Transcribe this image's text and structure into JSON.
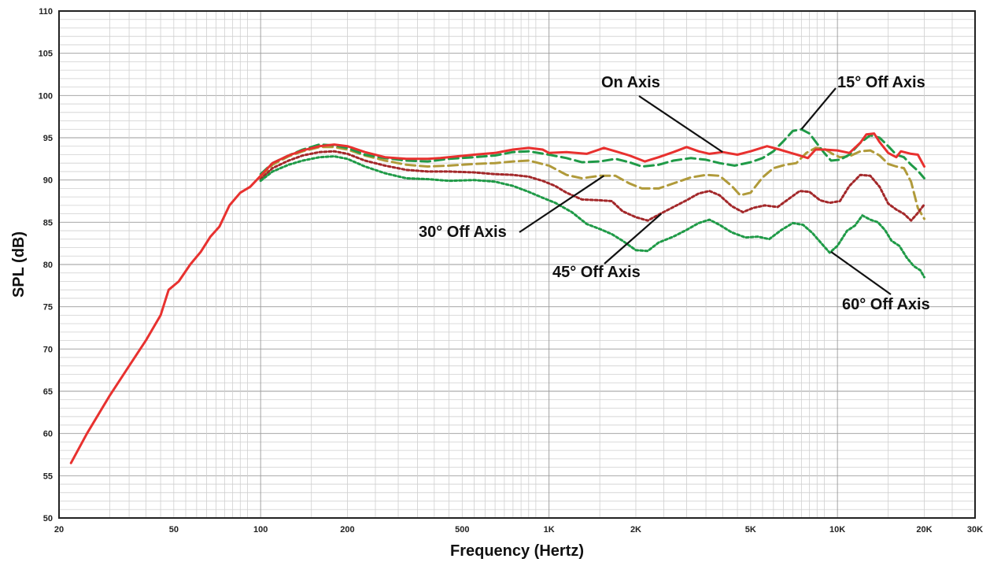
{
  "chart_data": {
    "type": "line",
    "title": "",
    "xlabel": "Frequency (Hertz)",
    "ylabel": "SPL (dB)",
    "x_scale": "log",
    "xlim": [
      20,
      30000
    ],
    "ylim": [
      50,
      110
    ],
    "grid": true,
    "x_ticks": [
      {
        "value": 20,
        "label": "20"
      },
      {
        "value": 50,
        "label": "50"
      },
      {
        "value": 100,
        "label": "100"
      },
      {
        "value": 200,
        "label": "200"
      },
      {
        "value": 500,
        "label": "500"
      },
      {
        "value": 1000,
        "label": "1K"
      },
      {
        "value": 2000,
        "label": "2K"
      },
      {
        "value": 5000,
        "label": "5K"
      },
      {
        "value": 10000,
        "label": "10K"
      },
      {
        "value": 20000,
        "label": "20K"
      },
      {
        "value": 30000,
        "label": "30K"
      }
    ],
    "y_ticks": [
      {
        "value": 50,
        "label": "50"
      },
      {
        "value": 55,
        "label": "55"
      },
      {
        "value": 60,
        "label": "60"
      },
      {
        "value": 65,
        "label": "65"
      },
      {
        "value": 70,
        "label": "70"
      },
      {
        "value": 75,
        "label": "75"
      },
      {
        "value": 80,
        "label": "80"
      },
      {
        "value": 85,
        "label": "85"
      },
      {
        "value": 90,
        "label": "90"
      },
      {
        "value": 95,
        "label": "95"
      },
      {
        "value": 100,
        "label": "100"
      },
      {
        "value": 105,
        "label": "105"
      },
      {
        "value": 110,
        "label": "110"
      }
    ],
    "series": [
      {
        "name": "On Axis",
        "color": "#e8312f",
        "style": "solid",
        "points": [
          [
            22,
            56.5
          ],
          [
            25,
            60
          ],
          [
            30,
            64.5
          ],
          [
            35,
            68
          ],
          [
            40,
            71
          ],
          [
            45,
            74
          ],
          [
            48,
            77
          ],
          [
            52,
            78
          ],
          [
            57,
            80
          ],
          [
            62,
            81.5
          ],
          [
            67,
            83.3
          ],
          [
            72,
            84.5
          ],
          [
            78,
            87
          ],
          [
            85,
            88.5
          ],
          [
            92,
            89.2
          ],
          [
            100,
            90.5
          ],
          [
            110,
            92
          ],
          [
            125,
            92.9
          ],
          [
            140,
            93.5
          ],
          [
            160,
            94
          ],
          [
            180,
            94.2
          ],
          [
            200,
            94
          ],
          [
            230,
            93.3
          ],
          [
            270,
            92.7
          ],
          [
            320,
            92.5
          ],
          [
            380,
            92.5
          ],
          [
            420,
            92.6
          ],
          [
            480,
            92.8
          ],
          [
            550,
            93
          ],
          [
            650,
            93.2
          ],
          [
            750,
            93.6
          ],
          [
            850,
            93.8
          ],
          [
            950,
            93.6
          ],
          [
            1000,
            93.2
          ],
          [
            1150,
            93.3
          ],
          [
            1350,
            93.1
          ],
          [
            1550,
            93.8
          ],
          [
            1700,
            93.4
          ],
          [
            1900,
            92.9
          ],
          [
            2150,
            92.2
          ],
          [
            2400,
            92.7
          ],
          [
            2700,
            93.3
          ],
          [
            3000,
            93.9
          ],
          [
            3300,
            93.4
          ],
          [
            3600,
            93.1
          ],
          [
            4000,
            93.3
          ],
          [
            4500,
            93
          ],
          [
            5000,
            93.4
          ],
          [
            5700,
            94
          ],
          [
            6300,
            93.6
          ],
          [
            6900,
            93.2
          ],
          [
            7400,
            92.9
          ],
          [
            7900,
            92.6
          ],
          [
            8400,
            93.6
          ],
          [
            9000,
            93.6
          ],
          [
            10000,
            93.5
          ],
          [
            11000,
            93.2
          ],
          [
            12000,
            94.4
          ],
          [
            12600,
            95.4
          ],
          [
            13400,
            95.5
          ],
          [
            14000,
            94.5
          ],
          [
            15000,
            93.2
          ],
          [
            16000,
            92.7
          ],
          [
            16600,
            93.4
          ],
          [
            18000,
            93.1
          ],
          [
            19000,
            93
          ],
          [
            20000,
            91.6
          ]
        ]
      },
      {
        "name": "15° Off Axis",
        "color": "#1f9a47",
        "style": "dashed",
        "points": [
          [
            100,
            90.7
          ],
          [
            110,
            92
          ],
          [
            125,
            92.9
          ],
          [
            140,
            93.6
          ],
          [
            160,
            94.2
          ],
          [
            180,
            94.1
          ],
          [
            200,
            93.8
          ],
          [
            230,
            93
          ],
          [
            270,
            92.6
          ],
          [
            320,
            92.3
          ],
          [
            380,
            92.2
          ],
          [
            450,
            92.5
          ],
          [
            550,
            92.7
          ],
          [
            650,
            92.9
          ],
          [
            750,
            93.3
          ],
          [
            850,
            93.4
          ],
          [
            1000,
            93
          ],
          [
            1150,
            92.6
          ],
          [
            1300,
            92.1
          ],
          [
            1500,
            92.2
          ],
          [
            1700,
            92.5
          ],
          [
            1900,
            92.1
          ],
          [
            2100,
            91.6
          ],
          [
            2400,
            91.8
          ],
          [
            2700,
            92.3
          ],
          [
            3100,
            92.6
          ],
          [
            3500,
            92.4
          ],
          [
            3900,
            92
          ],
          [
            4400,
            91.7
          ],
          [
            5000,
            92.1
          ],
          [
            5500,
            92.6
          ],
          [
            6000,
            93.4
          ],
          [
            6500,
            94.6
          ],
          [
            7000,
            95.8
          ],
          [
            7500,
            96
          ],
          [
            8000,
            95.5
          ],
          [
            8500,
            94.3
          ],
          [
            9000,
            93.2
          ],
          [
            9500,
            92.3
          ],
          [
            10200,
            92.4
          ],
          [
            11000,
            93
          ],
          [
            12000,
            94.4
          ],
          [
            13000,
            95.3
          ],
          [
            14000,
            95
          ],
          [
            15000,
            94
          ],
          [
            16000,
            93
          ],
          [
            17000,
            92.7
          ],
          [
            18000,
            91.8
          ],
          [
            19000,
            91.1
          ],
          [
            20000,
            90.2
          ]
        ]
      },
      {
        "name": "30° Off Axis",
        "color": "#b09a3a",
        "style": "dashed",
        "points": [
          [
            100,
            90.4
          ],
          [
            110,
            91.8
          ],
          [
            125,
            92.8
          ],
          [
            140,
            93.4
          ],
          [
            160,
            93.9
          ],
          [
            180,
            93.9
          ],
          [
            200,
            93.6
          ],
          [
            230,
            92.9
          ],
          [
            270,
            92.3
          ],
          [
            320,
            91.8
          ],
          [
            380,
            91.6
          ],
          [
            450,
            91.7
          ],
          [
            550,
            91.9
          ],
          [
            650,
            92
          ],
          [
            750,
            92.2
          ],
          [
            850,
            92.3
          ],
          [
            1000,
            91.7
          ],
          [
            1150,
            90.6
          ],
          [
            1300,
            90.2
          ],
          [
            1500,
            90.5
          ],
          [
            1700,
            90.5
          ],
          [
            1900,
            89.6
          ],
          [
            2100,
            89
          ],
          [
            2400,
            89
          ],
          [
            2700,
            89.6
          ],
          [
            3100,
            90.3
          ],
          [
            3500,
            90.6
          ],
          [
            3900,
            90.5
          ],
          [
            4300,
            89.3
          ],
          [
            4600,
            88.2
          ],
          [
            5000,
            88.5
          ],
          [
            5500,
            90.3
          ],
          [
            6000,
            91.4
          ],
          [
            6600,
            91.8
          ],
          [
            7200,
            92
          ],
          [
            7800,
            93.2
          ],
          [
            8400,
            93.8
          ],
          [
            9000,
            93.7
          ],
          [
            9600,
            93.1
          ],
          [
            10200,
            92.7
          ],
          [
            11000,
            92.8
          ],
          [
            12000,
            93.4
          ],
          [
            13000,
            93.5
          ],
          [
            14000,
            92.9
          ],
          [
            15000,
            91.9
          ],
          [
            16000,
            91.6
          ],
          [
            17000,
            91.4
          ],
          [
            18000,
            89.8
          ],
          [
            19000,
            86.7
          ],
          [
            20000,
            85.4
          ]
        ]
      },
      {
        "name": "45° Off Axis",
        "color": "#a3282a",
        "style": "dotted",
        "points": [
          [
            100,
            90.1
          ],
          [
            110,
            91.4
          ],
          [
            125,
            92.3
          ],
          [
            140,
            92.9
          ],
          [
            160,
            93.3
          ],
          [
            180,
            93.4
          ],
          [
            200,
            93.1
          ],
          [
            230,
            92.3
          ],
          [
            270,
            91.7
          ],
          [
            320,
            91.2
          ],
          [
            380,
            91
          ],
          [
            450,
            91
          ],
          [
            550,
            90.9
          ],
          [
            650,
            90.7
          ],
          [
            750,
            90.6
          ],
          [
            850,
            90.4
          ],
          [
            950,
            89.9
          ],
          [
            1050,
            89.3
          ],
          [
            1150,
            88.5
          ],
          [
            1300,
            87.7
          ],
          [
            1500,
            87.6
          ],
          [
            1650,
            87.5
          ],
          [
            1800,
            86.3
          ],
          [
            2000,
            85.6
          ],
          [
            2200,
            85.2
          ],
          [
            2400,
            85.9
          ],
          [
            2700,
            86.8
          ],
          [
            3000,
            87.6
          ],
          [
            3300,
            88.4
          ],
          [
            3600,
            88.7
          ],
          [
            3900,
            88.2
          ],
          [
            4300,
            86.9
          ],
          [
            4700,
            86.2
          ],
          [
            5100,
            86.7
          ],
          [
            5600,
            87
          ],
          [
            6200,
            86.8
          ],
          [
            6800,
            87.8
          ],
          [
            7400,
            88.7
          ],
          [
            8000,
            88.6
          ],
          [
            8700,
            87.6
          ],
          [
            9400,
            87.3
          ],
          [
            10200,
            87.5
          ],
          [
            11000,
            89.3
          ],
          [
            12000,
            90.6
          ],
          [
            13000,
            90.5
          ],
          [
            14000,
            89.2
          ],
          [
            15000,
            87.2
          ],
          [
            16000,
            86.5
          ],
          [
            17000,
            86
          ],
          [
            18000,
            85.2
          ],
          [
            19000,
            86.1
          ],
          [
            20000,
            87.1
          ]
        ]
      },
      {
        "name": "60° Off Axis",
        "color": "#1f9a47",
        "style": "dotted",
        "points": [
          [
            100,
            89.9
          ],
          [
            110,
            91
          ],
          [
            125,
            91.8
          ],
          [
            140,
            92.3
          ],
          [
            160,
            92.7
          ],
          [
            180,
            92.8
          ],
          [
            200,
            92.5
          ],
          [
            230,
            91.6
          ],
          [
            270,
            90.8
          ],
          [
            320,
            90.2
          ],
          [
            380,
            90.1
          ],
          [
            450,
            89.9
          ],
          [
            550,
            90
          ],
          [
            650,
            89.8
          ],
          [
            750,
            89.3
          ],
          [
            850,
            88.6
          ],
          [
            950,
            87.9
          ],
          [
            1050,
            87.3
          ],
          [
            1200,
            86.2
          ],
          [
            1350,
            84.8
          ],
          [
            1500,
            84.2
          ],
          [
            1650,
            83.6
          ],
          [
            1800,
            82.8
          ],
          [
            2000,
            81.7
          ],
          [
            2200,
            81.6
          ],
          [
            2400,
            82.6
          ],
          [
            2700,
            83.3
          ],
          [
            3000,
            84.1
          ],
          [
            3300,
            84.9
          ],
          [
            3600,
            85.3
          ],
          [
            3900,
            84.7
          ],
          [
            4300,
            83.8
          ],
          [
            4800,
            83.2
          ],
          [
            5300,
            83.3
          ],
          [
            5800,
            83
          ],
          [
            6400,
            84.1
          ],
          [
            7000,
            84.9
          ],
          [
            7600,
            84.7
          ],
          [
            8200,
            83.7
          ],
          [
            8800,
            82.5
          ],
          [
            9400,
            81.4
          ],
          [
            10000,
            82.2
          ],
          [
            10800,
            84
          ],
          [
            11500,
            84.6
          ],
          [
            12200,
            85.8
          ],
          [
            13000,
            85.3
          ],
          [
            13800,
            85
          ],
          [
            14600,
            84.1
          ],
          [
            15400,
            82.8
          ],
          [
            16400,
            82.2
          ],
          [
            17400,
            80.8
          ],
          [
            18400,
            79.8
          ],
          [
            19400,
            79.3
          ],
          [
            20000,
            78.5
          ]
        ]
      }
    ],
    "annotations": [
      {
        "text": "On Axis",
        "target": [
          4000,
          93.3
        ]
      },
      {
        "text": "15° Off Axis",
        "target": [
          7500,
          96
        ]
      },
      {
        "text": "30° Off Axis",
        "target": [
          1550,
          90.5
        ]
      },
      {
        "text": "45° Off Axis",
        "target": [
          2450,
          86
        ]
      },
      {
        "text": "60° Off Axis",
        "target": [
          9500,
          81.5
        ]
      }
    ]
  }
}
